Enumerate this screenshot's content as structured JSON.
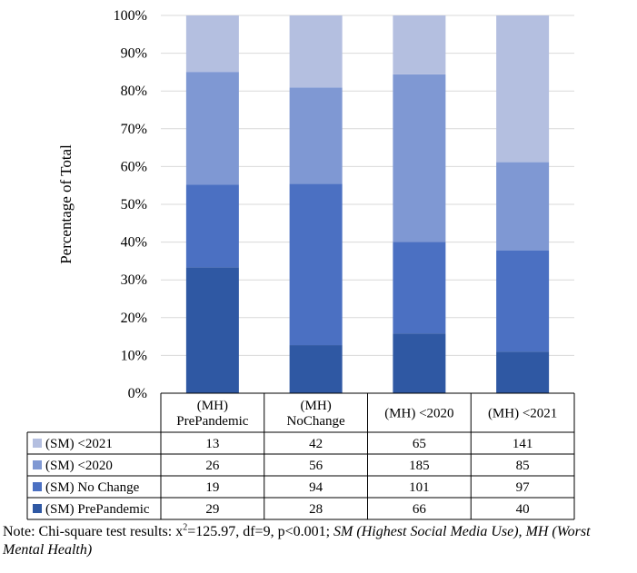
{
  "colors": {
    "gridline": "#d9d9d9",
    "table_border": "#000000",
    "series": [
      "#b4bfe0",
      "#7f98d3",
      "#4b70c2",
      "#2f58a3"
    ]
  },
  "chart_data": {
    "type": "bar",
    "stacked": "percent",
    "ylabel": "Percentage of Total",
    "yticks": [
      "0%",
      "10%",
      "20%",
      "30%",
      "40%",
      "50%",
      "60%",
      "70%",
      "80%",
      "90%",
      "100%"
    ],
    "ylim": [
      0,
      100
    ],
    "categories": [
      [
        "(MH)",
        "PrePandemic"
      ],
      [
        "(MH)",
        "NoChange"
      ],
      [
        "(MH) <2020"
      ],
      [
        "(MH) <2021"
      ]
    ],
    "series": [
      {
        "name": "(SM) <2021",
        "values": [
          13,
          42,
          65,
          141
        ]
      },
      {
        "name": "(SM) <2020",
        "values": [
          26,
          56,
          185,
          85
        ]
      },
      {
        "name": "(SM) No Change",
        "values": [
          19,
          94,
          101,
          97
        ]
      },
      {
        "name": "(SM) PrePandemic",
        "values": [
          29,
          28,
          66,
          40
        ]
      }
    ]
  },
  "note": {
    "prefix": "Note: Chi-square test results: x",
    "superscript": "2",
    "stats": "=125.97, df=9, p<0.001; ",
    "italic": "SM (Highest Social Media Use), MH (Worst Mental Health)"
  }
}
